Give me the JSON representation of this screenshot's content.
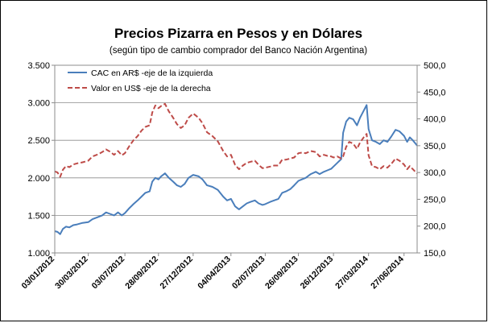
{
  "chart_data": {
    "type": "line",
    "title": "Precios Pizarra en Pesos y en Dólares",
    "subtitle": "(según tipo de cambio comprador del Banco Nación Argentina)",
    "xlabel": "",
    "ylabel": "",
    "y2label": "",
    "x_start": "2012-01-03",
    "x_end": "2014-07-31",
    "x_ticks": [
      "03/01/2012",
      "30/03/2012",
      "03/07/2012",
      "28/09/2012",
      "27/12/2012",
      "04/04/2013",
      "02/07/2013",
      "26/09/2013",
      "26/12/2013",
      "27/03/2014",
      "27/06/2014"
    ],
    "y_left_ticks": [
      "1.000",
      "1.500",
      "2.000",
      "2.500",
      "3.000",
      "3.500"
    ],
    "y_right_ticks": [
      "150,0",
      "200,0",
      "250,0",
      "300,0",
      "350,0",
      "400,0",
      "450,0",
      "500,0"
    ],
    "ylim_left": [
      1000,
      3500
    ],
    "ylim_right": [
      150,
      500
    ],
    "grid": true,
    "legend_position": "top-left",
    "series": [
      {
        "name": "CAC en AR$ -eje de la izquierda",
        "axis": "left",
        "color": "#4a7ebb",
        "style": "solid",
        "points": [
          [
            "2012-01-03",
            1290
          ],
          [
            "2012-01-10",
            1280
          ],
          [
            "2012-01-17",
            1250
          ],
          [
            "2012-01-24",
            1320
          ],
          [
            "2012-02-01",
            1350
          ],
          [
            "2012-02-10",
            1340
          ],
          [
            "2012-02-20",
            1370
          ],
          [
            "2012-03-01",
            1380
          ],
          [
            "2012-03-15",
            1400
          ],
          [
            "2012-03-30",
            1410
          ],
          [
            "2012-04-10",
            1450
          ],
          [
            "2012-04-25",
            1480
          ],
          [
            "2012-05-05",
            1500
          ],
          [
            "2012-05-15",
            1540
          ],
          [
            "2012-05-25",
            1520
          ],
          [
            "2012-06-05",
            1500
          ],
          [
            "2012-06-15",
            1540
          ],
          [
            "2012-06-25",
            1500
          ],
          [
            "2012-07-03",
            1530
          ],
          [
            "2012-07-15",
            1600
          ],
          [
            "2012-07-25",
            1650
          ],
          [
            "2012-08-05",
            1700
          ],
          [
            "2012-08-15",
            1750
          ],
          [
            "2012-08-25",
            1800
          ],
          [
            "2012-09-05",
            1820
          ],
          [
            "2012-09-12",
            1950
          ],
          [
            "2012-09-20",
            2000
          ],
          [
            "2012-09-28",
            1980
          ],
          [
            "2012-10-05",
            2020
          ],
          [
            "2012-10-15",
            2060
          ],
          [
            "2012-10-25",
            2000
          ],
          [
            "2012-11-05",
            1950
          ],
          [
            "2012-11-15",
            1900
          ],
          [
            "2012-11-25",
            1880
          ],
          [
            "2012-12-05",
            1920
          ],
          [
            "2012-12-15",
            2000
          ],
          [
            "2012-12-27",
            2040
          ],
          [
            "2013-01-10",
            2020
          ],
          [
            "2013-01-20",
            1980
          ],
          [
            "2013-02-01",
            1900
          ],
          [
            "2013-02-15",
            1880
          ],
          [
            "2013-03-01",
            1840
          ],
          [
            "2013-03-15",
            1750
          ],
          [
            "2013-03-25",
            1700
          ],
          [
            "2013-04-04",
            1720
          ],
          [
            "2013-04-15",
            1620
          ],
          [
            "2013-04-25",
            1580
          ],
          [
            "2013-05-05",
            1620
          ],
          [
            "2013-05-15",
            1660
          ],
          [
            "2013-05-25",
            1680
          ],
          [
            "2013-06-05",
            1700
          ],
          [
            "2013-06-15",
            1660
          ],
          [
            "2013-06-25",
            1640
          ],
          [
            "2013-07-02",
            1650
          ],
          [
            "2013-07-15",
            1680
          ],
          [
            "2013-07-25",
            1700
          ],
          [
            "2013-08-05",
            1720
          ],
          [
            "2013-08-15",
            1800
          ],
          [
            "2013-08-25",
            1820
          ],
          [
            "2013-09-05",
            1850
          ],
          [
            "2013-09-15",
            1900
          ],
          [
            "2013-09-26",
            1960
          ],
          [
            "2013-10-05",
            1980
          ],
          [
            "2013-10-15",
            2000
          ],
          [
            "2013-10-28",
            2050
          ],
          [
            "2013-11-10",
            2080
          ],
          [
            "2013-11-20",
            2050
          ],
          [
            "2013-12-01",
            2080
          ],
          [
            "2013-12-10",
            2100
          ],
          [
            "2013-12-20",
            2120
          ],
          [
            "2013-12-26",
            2150
          ],
          [
            "2014-01-05",
            2200
          ],
          [
            "2014-01-15",
            2250
          ],
          [
            "2014-01-20",
            2600
          ],
          [
            "2014-01-28",
            2750
          ],
          [
            "2014-02-05",
            2800
          ],
          [
            "2014-02-15",
            2780
          ],
          [
            "2014-02-25",
            2700
          ],
          [
            "2014-03-05",
            2800
          ],
          [
            "2014-03-15",
            2900
          ],
          [
            "2014-03-22",
            2970
          ],
          [
            "2014-03-27",
            2650
          ],
          [
            "2014-04-05",
            2500
          ],
          [
            "2014-04-15",
            2480
          ],
          [
            "2014-04-25",
            2450
          ],
          [
            "2014-05-05",
            2500
          ],
          [
            "2014-05-15",
            2480
          ],
          [
            "2014-05-25",
            2550
          ],
          [
            "2014-06-05",
            2640
          ],
          [
            "2014-06-15",
            2620
          ],
          [
            "2014-06-27",
            2560
          ],
          [
            "2014-07-05",
            2480
          ],
          [
            "2014-07-12",
            2540
          ],
          [
            "2014-07-20",
            2500
          ],
          [
            "2014-07-31",
            2430
          ]
        ]
      },
      {
        "name": "Valor en US$ -eje de la derecha",
        "axis": "right",
        "color": "#be4b48",
        "style": "dashed",
        "points": [
          [
            "2012-01-03",
            302
          ],
          [
            "2012-01-10",
            300
          ],
          [
            "2012-01-17",
            292
          ],
          [
            "2012-01-24",
            305
          ],
          [
            "2012-02-01",
            312
          ],
          [
            "2012-02-10",
            310
          ],
          [
            "2012-02-20",
            315
          ],
          [
            "2012-03-01",
            317
          ],
          [
            "2012-03-15",
            319
          ],
          [
            "2012-03-30",
            322
          ],
          [
            "2012-04-10",
            330
          ],
          [
            "2012-04-25",
            334
          ],
          [
            "2012-05-05",
            338
          ],
          [
            "2012-05-15",
            343
          ],
          [
            "2012-05-25",
            339
          ],
          [
            "2012-06-05",
            333
          ],
          [
            "2012-06-15",
            340
          ],
          [
            "2012-06-25",
            332
          ],
          [
            "2012-07-03",
            336
          ],
          [
            "2012-07-15",
            350
          ],
          [
            "2012-07-25",
            360
          ],
          [
            "2012-08-05",
            368
          ],
          [
            "2012-08-15",
            378
          ],
          [
            "2012-08-25",
            385
          ],
          [
            "2012-09-05",
            388
          ],
          [
            "2012-09-12",
            412
          ],
          [
            "2012-09-20",
            425
          ],
          [
            "2012-09-28",
            420
          ],
          [
            "2012-10-05",
            424
          ],
          [
            "2012-10-15",
            428
          ],
          [
            "2012-10-25",
            414
          ],
          [
            "2012-11-05",
            402
          ],
          [
            "2012-11-15",
            390
          ],
          [
            "2012-11-25",
            383
          ],
          [
            "2012-12-05",
            388
          ],
          [
            "2012-12-15",
            402
          ],
          [
            "2012-12-27",
            410
          ],
          [
            "2013-01-10",
            402
          ],
          [
            "2013-01-20",
            392
          ],
          [
            "2013-02-01",
            375
          ],
          [
            "2013-02-15",
            368
          ],
          [
            "2013-03-01",
            358
          ],
          [
            "2013-03-15",
            340
          ],
          [
            "2013-03-25",
            330
          ],
          [
            "2013-04-04",
            333
          ],
          [
            "2013-04-15",
            314
          ],
          [
            "2013-04-25",
            306
          ],
          [
            "2013-05-05",
            313
          ],
          [
            "2013-05-15",
            318
          ],
          [
            "2013-05-25",
            320
          ],
          [
            "2013-06-05",
            322
          ],
          [
            "2013-06-15",
            314
          ],
          [
            "2013-06-25",
            308
          ],
          [
            "2013-07-02",
            309
          ],
          [
            "2013-07-15",
            311
          ],
          [
            "2013-07-25",
            313
          ],
          [
            "2013-08-05",
            313
          ],
          [
            "2013-08-15",
            324
          ],
          [
            "2013-08-25",
            324
          ],
          [
            "2013-09-05",
            326
          ],
          [
            "2013-09-15",
            328
          ],
          [
            "2013-09-26",
            336
          ],
          [
            "2013-10-05",
            337
          ],
          [
            "2013-10-15",
            336
          ],
          [
            "2013-10-28",
            340
          ],
          [
            "2013-11-10",
            338
          ],
          [
            "2013-11-20",
            330
          ],
          [
            "2013-12-01",
            333
          ],
          [
            "2013-12-10",
            331
          ],
          [
            "2013-12-20",
            330
          ],
          [
            "2013-12-26",
            328
          ],
          [
            "2014-01-05",
            330
          ],
          [
            "2014-01-15",
            326
          ],
          [
            "2014-01-20",
            330
          ],
          [
            "2014-01-28",
            348
          ],
          [
            "2014-02-05",
            357
          ],
          [
            "2014-02-15",
            354
          ],
          [
            "2014-02-25",
            344
          ],
          [
            "2014-03-05",
            356
          ],
          [
            "2014-03-15",
            366
          ],
          [
            "2014-03-22",
            372
          ],
          [
            "2014-03-27",
            332
          ],
          [
            "2014-04-05",
            312
          ],
          [
            "2014-04-15",
            310
          ],
          [
            "2014-04-25",
            306
          ],
          [
            "2014-05-05",
            312
          ],
          [
            "2014-05-15",
            309
          ],
          [
            "2014-05-25",
            316
          ],
          [
            "2014-06-05",
            326
          ],
          [
            "2014-06-15",
            322
          ],
          [
            "2014-06-27",
            315
          ],
          [
            "2014-07-05",
            306
          ],
          [
            "2014-07-12",
            312
          ],
          [
            "2014-07-20",
            306
          ],
          [
            "2014-07-31",
            298
          ]
        ]
      }
    ]
  }
}
